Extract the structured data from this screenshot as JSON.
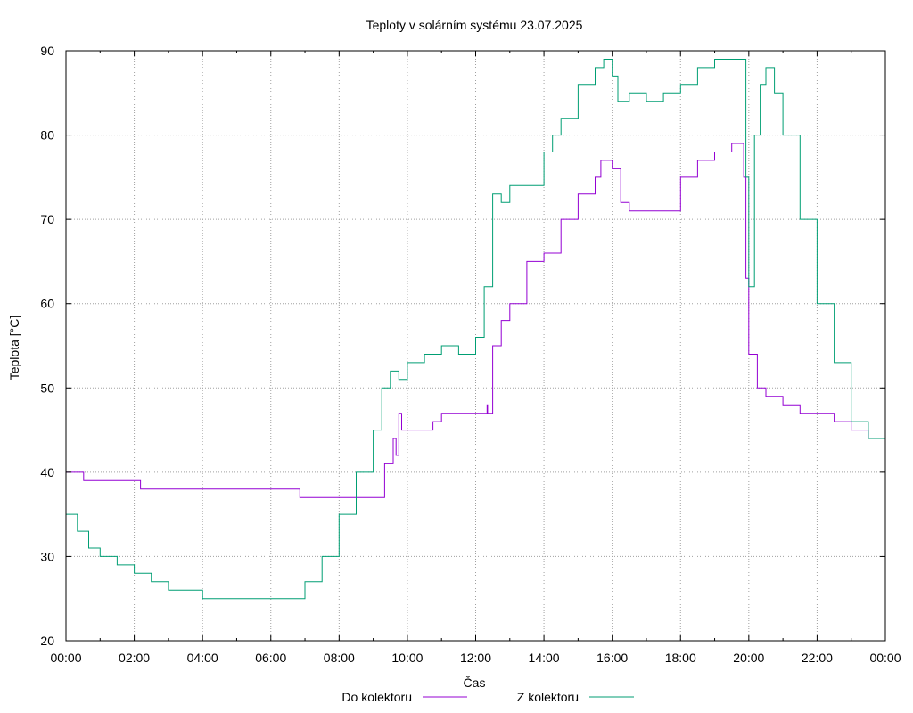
{
  "chart_data": {
    "type": "line",
    "title": "Teploty v solárním systému 23.07.2025",
    "xlabel": "Čas",
    "ylabel": "Teplota [°C]",
    "ylim": [
      20,
      90
    ],
    "yticks": [
      "20",
      "30",
      "40",
      "50",
      "60",
      "70",
      "80",
      "90"
    ],
    "xlim": [
      "00:00",
      "24:00"
    ],
    "xticks": [
      "00:00",
      "02:00",
      "04:00",
      "06:00",
      "08:00",
      "10:00",
      "12:00",
      "14:00",
      "16:00",
      "18:00",
      "20:00",
      "22:00",
      "00:00"
    ],
    "grid": true,
    "legend_position": "bottom",
    "colors": {
      "do_kolektoru": "#9400d3",
      "z_kolektoru": "#009e73"
    },
    "series": [
      {
        "name": "Do kolektoru",
        "x": [
          "00:00",
          "00:30",
          "00:31",
          "02:10",
          "02:11",
          "02:20",
          "04:00",
          "06:50",
          "06:51",
          "07:00",
          "08:00",
          "09:15",
          "09:20",
          "09:35",
          "09:40",
          "09:45",
          "09:50",
          "10:00",
          "10:30",
          "10:45",
          "11:00",
          "11:30",
          "12:00",
          "12:20",
          "12:21",
          "12:30",
          "12:45",
          "13:00",
          "13:30",
          "14:00",
          "14:30",
          "15:00",
          "15:30",
          "15:40",
          "16:00",
          "16:15",
          "16:30",
          "17:00",
          "17:30",
          "17:45",
          "18:00",
          "18:30",
          "19:00",
          "19:30",
          "19:50",
          "19:51",
          "19:55",
          "20:00",
          "20:15",
          "20:30",
          "21:00",
          "21:30",
          "22:00",
          "22:30",
          "23:00",
          "23:30",
          "24:00"
        ],
        "values": [
          40,
          40,
          39,
          39,
          38,
          38,
          38,
          38,
          37,
          37,
          37,
          37,
          41,
          44,
          42,
          47,
          45,
          45,
          45,
          46,
          47,
          47,
          47,
          48,
          47,
          55,
          58,
          60,
          65,
          66,
          70,
          73,
          75,
          77,
          76,
          72,
          71,
          71,
          71,
          71,
          75,
          77,
          78,
          79,
          79,
          75,
          63,
          54,
          50,
          49,
          48,
          47,
          47,
          46,
          45,
          44,
          43
        ]
      },
      {
        "name": "Z kolektoru",
        "x": [
          "00:00",
          "00:20",
          "00:40",
          "01:00",
          "01:30",
          "02:00",
          "02:30",
          "03:00",
          "03:30",
          "04:00",
          "04:30",
          "05:00",
          "06:00",
          "06:40",
          "07:00",
          "07:30",
          "08:00",
          "08:30",
          "09:00",
          "09:15",
          "09:30",
          "09:45",
          "10:00",
          "10:30",
          "11:00",
          "11:30",
          "12:00",
          "12:15",
          "12:30",
          "12:45",
          "13:00",
          "13:30",
          "14:00",
          "14:15",
          "14:30",
          "15:00",
          "15:30",
          "15:45",
          "16:00",
          "16:10",
          "16:30",
          "17:00",
          "17:30",
          "18:00",
          "18:30",
          "19:00",
          "19:30",
          "19:50",
          "19:55",
          "20:00",
          "20:10",
          "20:20",
          "20:30",
          "20:45",
          "21:00",
          "21:30",
          "22:00",
          "22:30",
          "23:00",
          "23:30",
          "24:00"
        ],
        "values": [
          35,
          33,
          31,
          30,
          29,
          28,
          27,
          26,
          26,
          25,
          25,
          25,
          25,
          25,
          27,
          30,
          35,
          40,
          45,
          50,
          52,
          51,
          53,
          54,
          55,
          54,
          56,
          62,
          73,
          72,
          74,
          74,
          78,
          80,
          82,
          86,
          88,
          89,
          87,
          84,
          85,
          84,
          85,
          86,
          88,
          89,
          89,
          89,
          75,
          62,
          80,
          86,
          88,
          85,
          80,
          70,
          60,
          53,
          46,
          44,
          40
        ]
      }
    ]
  }
}
